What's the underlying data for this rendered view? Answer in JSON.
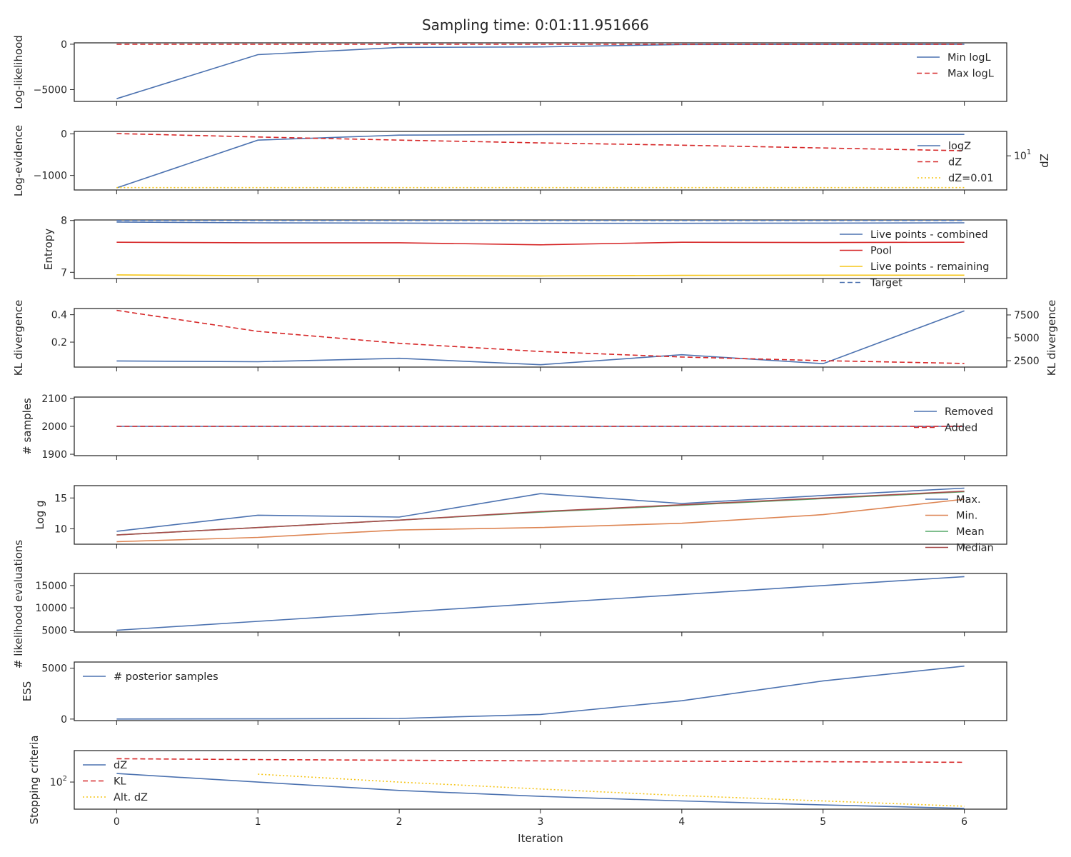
{
  "figure": {
    "title": "Sampling time: 0:01:11.951666",
    "xlabel": "Iteration"
  },
  "colors": {
    "blue": "#4c72b0",
    "red": "#d62728",
    "yellow": "#f5c518",
    "orange": "#dd8452",
    "green": "#55a868",
    "brown": "#a64a4a",
    "axis": "#262626"
  },
  "chart_data": [
    {
      "type": "line",
      "ylabel": "Log-likelihood",
      "x": [
        0,
        1,
        2,
        3,
        4,
        5,
        6
      ],
      "xlim": [
        -0.3,
        6.3
      ],
      "xticks": [
        0,
        1,
        2,
        3,
        4,
        5,
        6
      ],
      "xticklabels_shown": false,
      "ylim": [
        -6300,
        150
      ],
      "yticks": [
        0,
        -5000
      ],
      "yticklabels": [
        "0",
        "−5000"
      ],
      "series": [
        {
          "name": "Min logL",
          "values": [
            -6000,
            -1150,
            -350,
            -300,
            -30,
            -15,
            -10
          ],
          "color": "#4c72b0",
          "dash": "solid"
        },
        {
          "name": "Max logL",
          "values": [
            -5,
            -5,
            -5,
            -5,
            -5,
            -5,
            -5
          ],
          "color": "#d62728",
          "dash": "dashed"
        }
      ],
      "legend": "upper-right"
    },
    {
      "type": "line",
      "ylabel": "Log-evidence",
      "ylabel_right": "dZ",
      "yscale_right": "log",
      "x": [
        0,
        1,
        2,
        3,
        4,
        5,
        6
      ],
      "xlim": [
        -0.3,
        6.3
      ],
      "xticks": [
        0,
        1,
        2,
        3,
        4,
        5,
        6
      ],
      "xticklabels_shown": false,
      "ylim": [
        -1350,
        60
      ],
      "yticks": [
        0,
        -1000
      ],
      "yticklabels": [
        "0",
        "−1000"
      ],
      "yticks_right": [
        10
      ],
      "ytick_right_base": "10",
      "ytick_right_exp": "1",
      "series": [
        {
          "name": "logZ",
          "values": [
            -1300,
            -150,
            -30,
            -15,
            -12,
            -12,
            -12
          ],
          "color": "#4c72b0",
          "dash": "solid",
          "axis": "left"
        },
        {
          "name": "dZ",
          "values": [
            1250,
            600,
            300,
            165,
            100,
            55,
            30
          ],
          "color": "#d62728",
          "dash": "dashed",
          "axis": "right"
        },
        {
          "name": "dZ=0.01",
          "values": [
            0.01,
            0.01,
            0.01,
            0.01,
            0.01,
            0.01,
            0.01
          ],
          "color": "#f5c518",
          "dash": "dotted",
          "axis": "right"
        }
      ],
      "legend": "upper-right"
    },
    {
      "type": "line",
      "ylabel": "Entropy",
      "x": [
        0,
        1,
        2,
        3,
        4,
        5,
        6
      ],
      "xlim": [
        -0.3,
        6.3
      ],
      "xticks": [
        0,
        1,
        2,
        3,
        4,
        5,
        6
      ],
      "xticklabels_shown": false,
      "ylim": [
        6.88,
        8.01
      ],
      "yticks": [
        8,
        7
      ],
      "yticklabels": [
        "8",
        "7"
      ],
      "series": [
        {
          "name": "Live points - combined",
          "values": [
            7.97,
            7.955,
            7.95,
            7.945,
            7.945,
            7.95,
            7.955
          ],
          "color": "#4c72b0",
          "dash": "solid"
        },
        {
          "name": "Pool",
          "values": [
            7.58,
            7.57,
            7.57,
            7.53,
            7.58,
            7.575,
            7.58
          ],
          "color": "#d62728",
          "dash": "solid"
        },
        {
          "name": "Live points - remaining",
          "values": [
            6.95,
            6.935,
            6.935,
            6.93,
            6.94,
            6.945,
            6.945
          ],
          "color": "#f5c518",
          "dash": "solid"
        },
        {
          "name": "Target",
          "values": [
            8.0,
            8.0,
            8.0,
            8.0,
            8.0,
            8.0,
            8.0
          ],
          "color": "#4c72b0",
          "dash": "dashed"
        }
      ],
      "legend": "upper-right"
    },
    {
      "type": "line",
      "ylabel": "KL divergence",
      "ylabel_right": "KL divergence",
      "x": [
        0,
        1,
        2,
        3,
        4,
        5,
        6
      ],
      "xlim": [
        -0.3,
        6.3
      ],
      "xticks": [
        0,
        1,
        2,
        3,
        4,
        5,
        6
      ],
      "xticklabels_shown": false,
      "ylim": [
        0.018,
        0.445
      ],
      "yticks": [
        0.4,
        0.2
      ],
      "yticklabels": [
        "0.4",
        "0.2"
      ],
      "ylim_right": [
        1800,
        8200
      ],
      "yticks_right": [
        7500,
        5000,
        2500
      ],
      "yticklabels_right": [
        "7500",
        "5000",
        "2500"
      ],
      "series": [
        {
          "name": "KL divergence",
          "values": [
            0.063,
            0.057,
            0.082,
            0.035,
            0.108,
            0.043,
            0.428
          ],
          "color": "#4c72b0",
          "dash": "solid",
          "axis": "left"
        },
        {
          "name": "KL divergence",
          "values": [
            8000,
            5700,
            4400,
            3500,
            2900,
            2500,
            2200
          ],
          "color": "#d62728",
          "dash": "dashed",
          "axis": "right"
        }
      ]
    },
    {
      "type": "line",
      "ylabel": "# samples",
      "x": [
        0,
        1,
        2,
        3,
        4,
        5,
        6
      ],
      "xlim": [
        -0.3,
        6.3
      ],
      "xticks": [
        0,
        1,
        2,
        3,
        4,
        5,
        6
      ],
      "xticklabels_shown": false,
      "ylim": [
        1895,
        2105
      ],
      "yticks": [
        2100,
        2000,
        1900
      ],
      "yticklabels": [
        "2100",
        "2000",
        "1900"
      ],
      "series": [
        {
          "name": "Removed",
          "values": [
            2000,
            2000,
            2000,
            2000,
            2000,
            2000,
            2000
          ],
          "color": "#4c72b0",
          "dash": "solid"
        },
        {
          "name": "Added",
          "values": [
            2000,
            2000,
            2000,
            2000,
            2000,
            2000,
            2000
          ],
          "color": "#d62728",
          "dash": "dashed"
        }
      ],
      "legend": "upper-right"
    },
    {
      "type": "line",
      "ylabel": "Log g",
      "x": [
        0,
        1,
        2,
        3,
        4,
        5,
        6
      ],
      "xlim": [
        -0.3,
        6.3
      ],
      "xticks": [
        0,
        1,
        2,
        3,
        4,
        5,
        6
      ],
      "xticklabels_shown": false,
      "ylim": [
        7.5,
        17.0
      ],
      "yticks": [
        15,
        10
      ],
      "yticklabels": [
        "15",
        "10"
      ],
      "series": [
        {
          "name": "Max.",
          "values": [
            9.6,
            12.2,
            11.9,
            15.7,
            14.1,
            15.4,
            16.6
          ],
          "color": "#4c72b0",
          "dash": "solid"
        },
        {
          "name": "Min.",
          "values": [
            7.9,
            8.6,
            9.8,
            10.2,
            10.9,
            12.3,
            14.8
          ],
          "color": "#dd8452",
          "dash": "solid"
        },
        {
          "name": "Mean",
          "values": [
            9.0,
            10.2,
            11.4,
            12.7,
            13.8,
            14.9,
            16.0
          ],
          "color": "#55a868",
          "dash": "solid"
        },
        {
          "name": "Median",
          "values": [
            9.0,
            10.2,
            11.4,
            12.8,
            13.9,
            15.0,
            16.1
          ],
          "color": "#a64a4a",
          "dash": "solid"
        }
      ],
      "legend": "upper-right"
    },
    {
      "type": "line",
      "ylabel": "# likelihood evaluations",
      "x": [
        0,
        1,
        2,
        3,
        4,
        5,
        6
      ],
      "xlim": [
        -0.3,
        6.3
      ],
      "xticks": [
        0,
        1,
        2,
        3,
        4,
        5,
        6
      ],
      "xticklabels_shown": false,
      "ylim": [
        4600,
        17700
      ],
      "yticks": [
        15000,
        10000,
        5000
      ],
      "yticklabels": [
        "15000",
        "10000",
        "5000"
      ],
      "series": [
        {
          "name": "# likelihood evaluations",
          "values": [
            5000,
            7000,
            9000,
            11000,
            13000,
            15000,
            17000
          ],
          "color": "#4c72b0",
          "dash": "solid"
        }
      ]
    },
    {
      "type": "line",
      "ylabel": "ESS",
      "x": [
        0,
        1,
        2,
        3,
        4,
        5,
        6
      ],
      "xlim": [
        -0.3,
        6.3
      ],
      "xticks": [
        0,
        1,
        2,
        3,
        4,
        5,
        6
      ],
      "xticklabels_shown": false,
      "ylim": [
        -150,
        5600
      ],
      "yticks": [
        5000,
        0
      ],
      "yticklabels": [
        "5000",
        "0"
      ],
      "series": [
        {
          "name": "# posterior samples",
          "values": [
            5,
            20,
            60,
            450,
            1800,
            3750,
            5200
          ],
          "color": "#4c72b0",
          "dash": "solid"
        }
      ],
      "legend": "upper-left"
    },
    {
      "type": "line",
      "ylabel": "Stopping criteria",
      "yscale": "log",
      "x": [
        0,
        1,
        2,
        3,
        4,
        5,
        6
      ],
      "xlim": [
        -0.3,
        6.3
      ],
      "xticks": [
        0,
        1,
        2,
        3,
        4,
        5,
        6
      ],
      "xticklabels": [
        "0",
        "1",
        "2",
        "3",
        "4",
        "5",
        "6"
      ],
      "ylim": [
        25,
        500
      ],
      "yticks": [
        100
      ],
      "ytick_base": "10",
      "ytick_exp": "2",
      "series": [
        {
          "name": "dZ",
          "values": [
            155,
            100,
            65,
            48,
            38,
            31,
            26
          ],
          "color": "#4c72b0",
          "dash": "solid"
        },
        {
          "name": "KL",
          "values": [
            330,
            315,
            305,
            295,
            290,
            283,
            275
          ],
          "color": "#d62728",
          "dash": "dashed"
        },
        {
          "name": "Alt. dZ",
          "values": [
            null,
            150,
            100,
            70,
            50,
            38,
            29
          ],
          "color": "#f5c518",
          "dash": "dotted"
        }
      ],
      "legend": "upper-left"
    }
  ]
}
